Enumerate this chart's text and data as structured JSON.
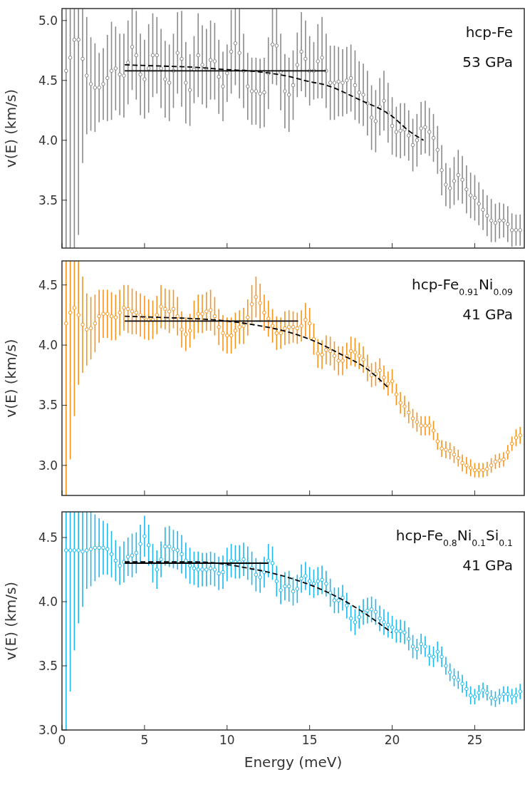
{
  "chart_data": [
    {
      "type": "scatter",
      "ylabel": "v(E) (km/s)",
      "annotations": [
        "hcp-Fe",
        "53 GPa"
      ],
      "xlim": [
        0,
        28
      ],
      "xticks": [
        0,
        5,
        10,
        15,
        20,
        25
      ],
      "ylim": [
        3.1,
        5.1
      ],
      "yticks": [
        {
          "value": 3.5,
          "label": "3.5"
        },
        {
          "value": 4,
          "label": "4.0"
        },
        {
          "value": 4.5,
          "label": "4.5"
        },
        {
          "value": 5,
          "label": "5.0"
        }
      ],
      "tick_labels": "y",
      "grid": false,
      "x": [
        0.25,
        0.5,
        0.75,
        1,
        1.25,
        1.5,
        1.75,
        2,
        2.25,
        2.5,
        2.75,
        3,
        3.25,
        3.5,
        3.75,
        4,
        4.25,
        4.5,
        4.75,
        5,
        5.25,
        5.5,
        5.75,
        6,
        6.25,
        6.5,
        6.75,
        7,
        7.25,
        7.5,
        7.75,
        8,
        8.25,
        8.5,
        8.75,
        9,
        9.25,
        9.5,
        9.75,
        10,
        10.25,
        10.5,
        10.75,
        11,
        11.25,
        11.5,
        11.75,
        12,
        12.25,
        12.5,
        12.75,
        13,
        13.25,
        13.5,
        13.75,
        14,
        14.25,
        14.5,
        14.75,
        15,
        15.25,
        15.5,
        15.75,
        16,
        16.25,
        16.5,
        16.75,
        17,
        17.25,
        17.5,
        17.75,
        18,
        18.25,
        18.5,
        18.75,
        19,
        19.25,
        19.5,
        19.75,
        20,
        20.25,
        20.5,
        20.75,
        21,
        21.25,
        21.5,
        21.75,
        22,
        22.25,
        22.5,
        22.75,
        23,
        23.25,
        23.5,
        23.75,
        24,
        24.25,
        24.5,
        24.75,
        25,
        25.25,
        25.5,
        25.75,
        26,
        26.25,
        26.5,
        26.75,
        27,
        27.25,
        27.5,
        27.75
      ],
      "series": [
        {
          "color": "#8a8a8a",
          "marker": "circle",
          "values": [
            4.58,
            4.69,
            4.84,
            4.84,
            4.68,
            4.54,
            4.47,
            4.44,
            4.44,
            4.47,
            4.52,
            4.58,
            4.6,
            4.55,
            4.54,
            4.65,
            4.78,
            4.71,
            4.55,
            4.51,
            4.6,
            4.71,
            4.71,
            4.6,
            4.51,
            4.48,
            4.58,
            4.73,
            4.68,
            4.48,
            4.42,
            4.59,
            4.71,
            4.63,
            4.6,
            4.67,
            4.66,
            4.53,
            4.45,
            4.56,
            4.74,
            4.81,
            4.73,
            4.58,
            4.45,
            4.41,
            4.41,
            4.39,
            4.4,
            4.56,
            4.8,
            4.79,
            4.57,
            4.41,
            4.38,
            4.46,
            4.63,
            4.74,
            4.68,
            4.58,
            4.58,
            4.66,
            4.69,
            4.58,
            4.48,
            4.48,
            4.49,
            4.48,
            4.5,
            4.52,
            4.46,
            4.4,
            4.38,
            4.31,
            4.19,
            4.16,
            4.28,
            4.33,
            4.23,
            4.12,
            4.07,
            4.08,
            4.09,
            4.04,
            3.96,
            4.0,
            4.1,
            4.11,
            4.07,
            4.02,
            3.92,
            3.75,
            3.63,
            3.6,
            3.66,
            3.71,
            3.67,
            3.59,
            3.54,
            3.52,
            3.47,
            3.42,
            3.37,
            3.33,
            3.31,
            3.33,
            3.33,
            3.3,
            3.25,
            3.25,
            3.25
          ],
          "errors": [
            [
              3.1,
              5.1
            ],
            [
              3.1,
              5.1
            ],
            [
              3.1,
              5.1
            ],
            [
              3.21,
              5.1
            ],
            [
              3.81,
              5.1
            ],
            0.49,
            0.39,
            0.37,
            0.29,
            0.3,
            0.36,
            0.41,
            0.35,
            0.34,
            0.35,
            0.35,
            [
              4.42,
              5.1
            ],
            0.37,
            0.34,
            0.33,
            0.37,
            0.35,
            0.32,
            0.33,
            0.32,
            0.32,
            0.31,
            0.34,
            0.4,
            0.34,
            0.3,
            0.28,
            0.35,
            0.33,
            0.33,
            0.33,
            0.32,
            0.31,
            0.29,
            0.24,
            0.35,
            [
              4.46,
              5.1
            ],
            [
              4.35,
              5.1
            ],
            0.31,
            0.28,
            0.28,
            0.28,
            0.29,
            0.29,
            0.3,
            [
              4.47,
              5.1
            ],
            [
              4.46,
              5.1
            ],
            0.32,
            0.31,
            0.31,
            0.29,
            0.27,
            0.33,
            0.32,
            0.29,
            0.24,
            0.31,
            0.34,
            0.31,
            0.31,
            0.31,
            0.29,
            0.28,
            0.28,
            0.28,
            0.29,
            0.26,
            0.26,
            0.27,
            0.27,
            0.26,
            0.24,
            0.25,
            0.25,
            0.24,
            0.21,
            0.23,
            0.22,
            0.21,
            0.22,
            0.22,
            0.22,
            0.22,
            0.2,
            0.2,
            0.2,
            0.21,
            0.18,
            0.17,
            0.2,
            0.21,
            0.2,
            0.2,
            0.19,
            0.19,
            0.18,
            0.17,
            0.17,
            0.18,
            0.16,
            0.15,
            0.14,
            0.15,
            0.14,
            0.13,
            0.13
          ]
        },
        {
          "type": "line",
          "color": "#000000",
          "line_style": "solid",
          "x": [
            3.8,
            16
          ],
          "values": [
            4.58,
            4.58
          ]
        },
        {
          "type": "line",
          "color": "#000000",
          "line_style": "dashed",
          "x": [
            3.8,
            6,
            8,
            10,
            11.3,
            13.5,
            15,
            16,
            18,
            20,
            21,
            21.9
          ],
          "values": [
            4.63,
            4.62,
            4.61,
            4.59,
            4.58,
            4.54,
            4.49,
            4.46,
            4.34,
            4.2,
            4.08,
            4.0
          ]
        }
      ]
    },
    {
      "type": "scatter",
      "ylabel": "v(E) (km/s)",
      "annotations": [
        "hcp-Fe$_{0.91}$Ni$_{0.09}$",
        "41 GPa"
      ],
      "xlim": [
        0,
        28
      ],
      "xticks": [
        0,
        5,
        10,
        15,
        20,
        25
      ],
      "ylim": [
        2.75,
        4.7
      ],
      "yticks": [
        {
          "value": 3,
          "label": "3.0"
        },
        {
          "value": 3.5,
          "label": "3.5"
        },
        {
          "value": 4,
          "label": "4.0"
        },
        {
          "value": 4.5,
          "label": "4.5"
        }
      ],
      "tick_labels": "y",
      "grid": false,
      "x": [
        0.25,
        0.5,
        0.75,
        1,
        1.25,
        1.5,
        1.75,
        2,
        2.25,
        2.5,
        2.75,
        3,
        3.25,
        3.5,
        3.75,
        4,
        4.25,
        4.5,
        4.75,
        5,
        5.25,
        5.5,
        5.75,
        6,
        6.25,
        6.5,
        6.75,
        7,
        7.25,
        7.5,
        7.75,
        8,
        8.25,
        8.5,
        8.75,
        9,
        9.25,
        9.5,
        9.75,
        10,
        10.25,
        10.5,
        10.75,
        11,
        11.25,
        11.5,
        11.75,
        12,
        12.25,
        12.5,
        12.75,
        13,
        13.25,
        13.5,
        13.75,
        14,
        14.25,
        14.5,
        14.75,
        15,
        15.25,
        15.5,
        15.75,
        16,
        16.25,
        16.5,
        16.75,
        17,
        17.25,
        17.5,
        17.75,
        18,
        18.25,
        18.5,
        18.75,
        19,
        19.25,
        19.5,
        19.75,
        20,
        20.25,
        20.5,
        20.75,
        21,
        21.25,
        21.5,
        21.75,
        22,
        22.25,
        22.5,
        22.75,
        23,
        23.25,
        23.5,
        23.75,
        24,
        24.25,
        24.5,
        24.75,
        25,
        25.25,
        25.5,
        25.75,
        26,
        26.25,
        26.5,
        26.75,
        27,
        27.25,
        27.5,
        27.75
      ],
      "series": [
        {
          "color": "#f7941d",
          "marker": "circle",
          "values": [
            4.18,
            4.27,
            4.31,
            4.25,
            4.17,
            4.13,
            4.14,
            4.18,
            4.24,
            4.26,
            4.26,
            4.24,
            4.23,
            4.27,
            4.31,
            4.3,
            4.28,
            4.27,
            4.25,
            4.23,
            4.21,
            4.21,
            4.25,
            4.32,
            4.3,
            4.28,
            4.3,
            4.24,
            4.13,
            4.09,
            4.12,
            4.21,
            4.26,
            4.26,
            4.28,
            4.29,
            4.24,
            4.15,
            4.1,
            4.08,
            4.08,
            4.12,
            4.15,
            4.16,
            4.23,
            4.34,
            4.4,
            4.35,
            4.27,
            4.22,
            4.16,
            4.1,
            4.1,
            4.14,
            4.15,
            4.15,
            4.14,
            4.16,
            4.21,
            4.18,
            4.05,
            3.93,
            3.92,
            3.96,
            3.95,
            3.91,
            3.87,
            3.87,
            3.91,
            3.95,
            3.94,
            3.91,
            3.88,
            3.81,
            3.75,
            3.76,
            3.79,
            3.73,
            3.68,
            3.7,
            3.59,
            3.52,
            3.49,
            3.44,
            3.39,
            3.36,
            3.33,
            3.33,
            3.33,
            3.29,
            3.2,
            3.14,
            3.13,
            3.12,
            3.09,
            3.06,
            3.02,
            3.0,
            2.98,
            2.96,
            2.96,
            2.96,
            2.97,
            3.0,
            3.03,
            3.04,
            3.05,
            3.11,
            3.18,
            3.23,
            3.25
          ],
          "errors": [
            [
              2.75,
              4.7
            ],
            [
              3.05,
              4.7
            ],
            [
              3.41,
              4.7
            ],
            [
              3.67,
              4.7
            ],
            0.4,
            0.3,
            0.26,
            0.24,
            0.22,
            0.2,
            0.2,
            0.2,
            0.19,
            0.19,
            0.19,
            0.2,
            0.19,
            0.18,
            0.18,
            0.18,
            0.17,
            0.16,
            0.16,
            0.18,
            0.17,
            0.18,
            0.16,
            0.16,
            0.15,
            0.14,
            0.14,
            0.16,
            0.16,
            0.16,
            0.16,
            0.17,
            0.16,
            0.15,
            0.15,
            0.15,
            0.15,
            0.15,
            0.14,
            0.15,
            0.15,
            0.16,
            0.17,
            0.16,
            0.15,
            0.15,
            0.14,
            0.14,
            0.13,
            0.14,
            0.14,
            0.13,
            0.13,
            0.13,
            0.14,
            0.13,
            0.13,
            0.12,
            0.12,
            0.12,
            0.12,
            0.12,
            0.12,
            0.12,
            0.11,
            0.12,
            0.12,
            0.11,
            0.11,
            0.11,
            0.1,
            0.1,
            0.1,
            0.1,
            0.1,
            0.1,
            0.09,
            0.09,
            0.09,
            0.09,
            0.08,
            0.08,
            0.08,
            0.08,
            0.08,
            0.08,
            0.07,
            0.07,
            0.07,
            0.07,
            0.07,
            0.07,
            0.07,
            0.07,
            0.07,
            0.06,
            0.06,
            0.06,
            0.06,
            0.06,
            0.06,
            0.06,
            0.06,
            0.06,
            0.06,
            0.07,
            0.07
          ]
        },
        {
          "type": "line",
          "color": "#000000",
          "line_style": "solid",
          "x": [
            3.8,
            14.3
          ],
          "values": [
            4.2,
            4.2
          ]
        },
        {
          "type": "line",
          "color": "#000000",
          "line_style": "dashed",
          "x": [
            3.8,
            6,
            8,
            10,
            12,
            13.4,
            15.5,
            16.8,
            18.5,
            19.8
          ],
          "values": [
            4.24,
            4.23,
            4.22,
            4.2,
            4.16,
            4.12,
            4.02,
            3.93,
            3.8,
            3.64
          ]
        }
      ]
    },
    {
      "type": "scatter",
      "xlabel": "Energy (meV)",
      "ylabel": "v(E) (km/s)",
      "annotations": [
        "hcp-Fe$_{0.8}$Ni$_{0.1}$Si$_{0.1}$",
        "41 GPa"
      ],
      "xlim": [
        0,
        28
      ],
      "xticks": [
        0,
        5,
        10,
        15,
        20,
        25
      ],
      "ylim": [
        3.0,
        4.7
      ],
      "yticks": [
        {
          "value": 3,
          "label": "3.0"
        },
        {
          "value": 3.5,
          "label": "3.5"
        },
        {
          "value": 4,
          "label": "4.0"
        },
        {
          "value": 4.5,
          "label": "4.5"
        }
      ],
      "grid": false,
      "x": [
        0.25,
        0.5,
        0.75,
        1,
        1.25,
        1.5,
        1.75,
        2,
        2.25,
        2.5,
        2.75,
        3,
        3.25,
        3.5,
        3.75,
        4,
        4.25,
        4.5,
        4.75,
        5,
        5.25,
        5.5,
        5.75,
        6,
        6.25,
        6.5,
        6.75,
        7,
        7.25,
        7.5,
        7.75,
        8,
        8.25,
        8.5,
        8.75,
        9,
        9.25,
        9.5,
        9.75,
        10,
        10.25,
        10.5,
        10.75,
        11,
        11.25,
        11.5,
        11.75,
        12,
        12.25,
        12.5,
        12.75,
        13,
        13.25,
        13.5,
        13.75,
        14,
        14.25,
        14.5,
        14.75,
        15,
        15.25,
        15.5,
        15.75,
        16,
        16.25,
        16.5,
        16.75,
        17,
        17.25,
        17.5,
        17.75,
        18,
        18.25,
        18.5,
        18.75,
        19,
        19.25,
        19.5,
        19.75,
        20,
        20.25,
        20.5,
        20.75,
        21,
        21.25,
        21.5,
        21.75,
        22,
        22.25,
        22.5,
        22.75,
        23,
        23.25,
        23.5,
        23.75,
        24,
        24.25,
        24.5,
        24.75,
        25,
        25.25,
        25.5,
        25.75,
        26,
        26.25,
        26.5,
        26.75,
        27,
        27.25,
        27.5,
        27.75
      ],
      "series": [
        {
          "color": "#1cb8ee",
          "marker": "circle",
          "values": [
            4.4,
            4.4,
            4.4,
            4.4,
            4.39,
            4.4,
            4.41,
            4.42,
            4.42,
            4.42,
            4.41,
            4.37,
            4.32,
            4.28,
            4.31,
            4.35,
            4.36,
            4.38,
            4.45,
            4.51,
            4.44,
            4.3,
            4.25,
            4.33,
            4.43,
            4.43,
            4.41,
            4.4,
            4.37,
            4.32,
            4.28,
            4.26,
            4.25,
            4.25,
            4.25,
            4.26,
            4.25,
            4.22,
            4.23,
            4.29,
            4.32,
            4.31,
            4.31,
            4.33,
            4.3,
            4.26,
            4.21,
            4.19,
            4.23,
            4.32,
            4.3,
            4.16,
            4.09,
            4.12,
            4.12,
            4.08,
            4.1,
            4.18,
            4.2,
            4.16,
            4.14,
            4.16,
            4.17,
            4.14,
            4.07,
            4.01,
            4.01,
            4.03,
            3.97,
            3.87,
            3.84,
            3.88,
            3.92,
            3.93,
            3.94,
            3.92,
            3.87,
            3.84,
            3.82,
            3.8,
            3.77,
            3.77,
            3.76,
            3.71,
            3.65,
            3.63,
            3.67,
            3.65,
            3.58,
            3.57,
            3.61,
            3.57,
            3.5,
            3.45,
            3.41,
            3.39,
            3.36,
            3.32,
            3.27,
            3.26,
            3.29,
            3.31,
            3.29,
            3.25,
            3.24,
            3.26,
            3.28,
            3.28,
            3.26,
            3.27,
            3.3
          ],
          "errors": [
            [
              3.0,
              4.7
            ],
            [
              3.3,
              4.7
            ],
            [
              3.62,
              4.7
            ],
            [
              3.83,
              4.7
            ],
            [
              3.96,
              4.7
            ],
            0.3,
            [
              4.12,
              4.7
            ],
            0.26,
            0.23,
            0.21,
            0.2,
            0.18,
            0.16,
            0.15,
            0.16,
            0.15,
            0.17,
            0.16,
            0.15,
            0.16,
            0.16,
            0.15,
            0.15,
            0.14,
            0.15,
            0.16,
            0.15,
            0.15,
            0.15,
            0.14,
            0.14,
            0.13,
            0.14,
            0.13,
            0.13,
            0.13,
            0.13,
            0.13,
            0.13,
            0.13,
            0.13,
            0.13,
            0.13,
            0.13,
            0.13,
            0.13,
            0.13,
            0.12,
            0.12,
            0.13,
            0.13,
            0.12,
            0.11,
            0.11,
            0.12,
            0.11,
            0.11,
            0.11,
            0.11,
            0.11,
            0.11,
            0.11,
            0.11,
            0.1,
            0.11,
            0.1,
            0.1,
            0.1,
            0.1,
            0.1,
            0.1,
            0.09,
            0.1,
            0.1,
            0.1,
            0.1,
            0.1,
            0.1,
            0.1,
            0.09,
            0.09,
            0.09,
            0.09,
            0.09,
            0.09,
            0.08,
            0.08,
            0.08,
            0.08,
            0.08,
            0.08,
            0.08,
            0.07,
            0.07,
            0.07,
            0.07,
            0.07,
            0.06,
            0.07,
            0.06,
            0.06,
            0.06,
            0.06,
            0.06,
            0.06,
            0.06,
            0.06,
            0.06,
            0.06,
            0.06,
            0.06
          ]
        },
        {
          "type": "line",
          "color": "#000000",
          "line_style": "solid",
          "x": [
            3.8,
            12.5
          ],
          "values": [
            4.3,
            4.3
          ]
        },
        {
          "type": "line",
          "color": "#000000",
          "line_style": "dashed",
          "x": [
            3.8,
            6,
            8,
            10,
            11.3,
            12.5,
            13.4,
            15.8,
            17.6,
            19.96
          ],
          "values": [
            4.31,
            4.31,
            4.31,
            4.29,
            4.26,
            4.23,
            4.2,
            4.09,
            3.97,
            3.76
          ]
        }
      ]
    }
  ]
}
